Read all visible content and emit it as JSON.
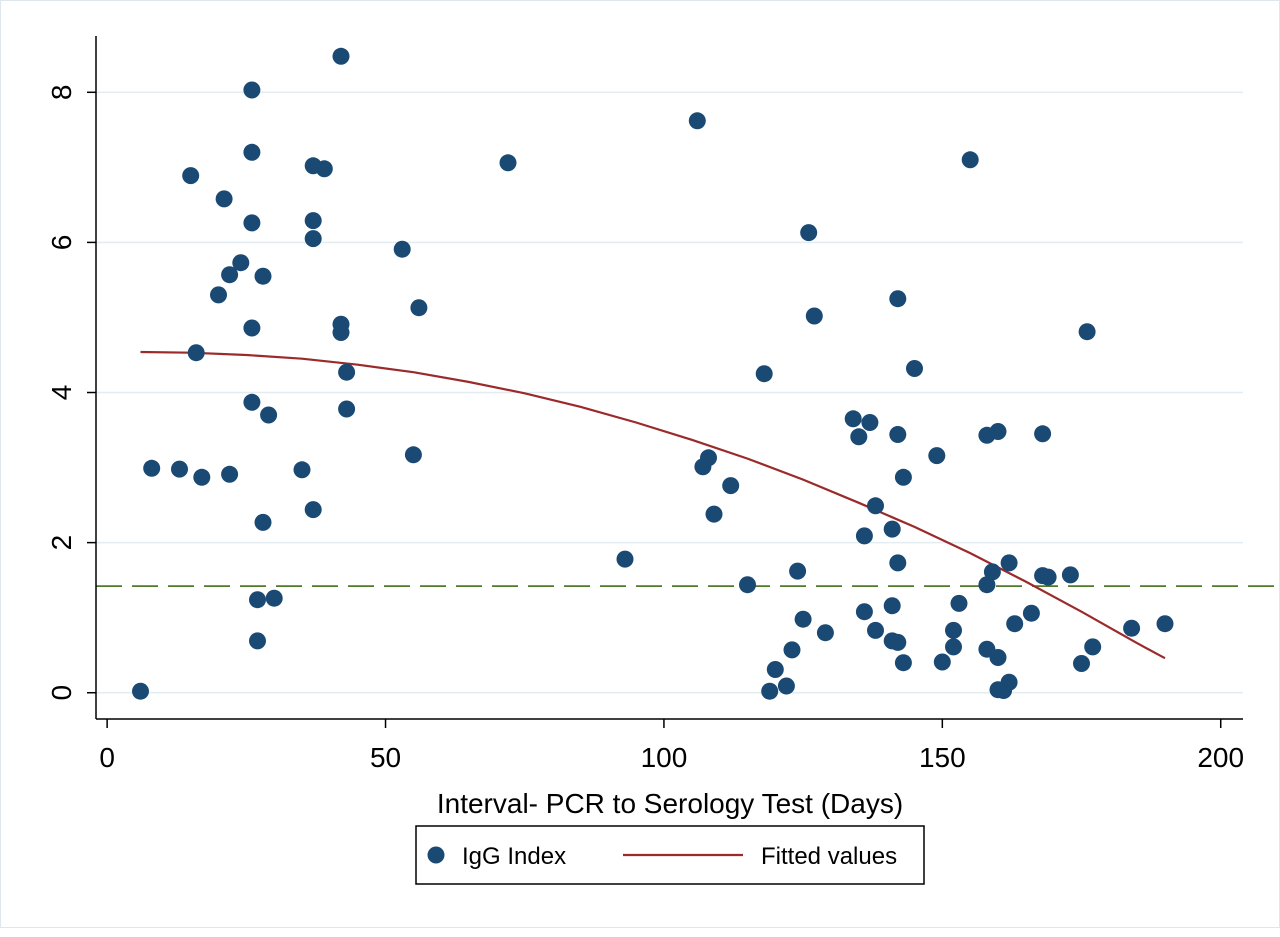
{
  "chart_data": {
    "type": "scatter",
    "title": "",
    "xlabel": "Interval- PCR to Serology Test (Days)",
    "ylabel": "",
    "xlim": [
      -2,
      204
    ],
    "ylim": [
      -0.35,
      8.75
    ],
    "xticks": [
      0,
      50,
      100,
      150,
      200
    ],
    "yticks": [
      0,
      2,
      4,
      6,
      8
    ],
    "grid": "horizontal",
    "legend_position": "bottom-center",
    "reference_line": {
      "y": 1.42,
      "style": "dashed",
      "color": "#4f7a2a"
    },
    "colors": {
      "points": "#1a4a74",
      "fit": "#9b2a2a",
      "grid": "#e3edf1"
    },
    "series": [
      {
        "name": "IgG Index",
        "kind": "scatter",
        "x": [
          6,
          8,
          13,
          15,
          16,
          17,
          20,
          21,
          22,
          22,
          24,
          26,
          26,
          26,
          26,
          26,
          27,
          27,
          28,
          28,
          29,
          30,
          35,
          37,
          37,
          37,
          37,
          39,
          42,
          42,
          42,
          43,
          43,
          53,
          55,
          56,
          72,
          93,
          106,
          107,
          108,
          109,
          112,
          115,
          118,
          119,
          120,
          122,
          123,
          124,
          125,
          126,
          127,
          129,
          134,
          135,
          136,
          136,
          137,
          138,
          138,
          141,
          141,
          141,
          142,
          142,
          142,
          142,
          143,
          143,
          145,
          149,
          150,
          152,
          152,
          153,
          155,
          158,
          158,
          158,
          159,
          160,
          160,
          160,
          161,
          162,
          162,
          163,
          166,
          168,
          168,
          169,
          173,
          175,
          176,
          177,
          184,
          190
        ],
        "y": [
          0.02,
          2.99,
          2.98,
          6.89,
          4.53,
          2.87,
          5.3,
          6.58,
          5.57,
          2.91,
          5.73,
          8.03,
          7.2,
          6.26,
          4.86,
          3.87,
          1.24,
          0.69,
          5.55,
          2.27,
          3.7,
          1.26,
          2.97,
          7.02,
          6.29,
          6.05,
          2.44,
          6.98,
          8.48,
          4.91,
          4.8,
          4.27,
          3.78,
          5.91,
          3.17,
          5.13,
          7.06,
          1.78,
          7.62,
          3.01,
          3.13,
          2.38,
          2.76,
          1.44,
          4.25,
          0.02,
          0.31,
          0.09,
          0.57,
          1.62,
          0.98,
          6.13,
          5.02,
          0.8,
          3.65,
          3.41,
          2.09,
          1.08,
          3.6,
          2.49,
          0.83,
          2.18,
          1.16,
          0.69,
          5.25,
          3.44,
          1.73,
          0.67,
          2.87,
          0.4,
          4.32,
          3.16,
          0.41,
          0.83,
          0.61,
          1.19,
          7.1,
          3.43,
          1.44,
          0.58,
          1.61,
          3.48,
          0.47,
          0.04,
          0.03,
          1.73,
          0.14,
          0.92,
          1.06,
          3.45,
          1.56,
          1.54,
          1.57,
          0.39,
          4.81,
          0.61,
          0.86,
          0.92
        ]
      },
      {
        "name": "Fitted values",
        "kind": "line",
        "x": [
          6,
          15,
          25,
          35,
          45,
          55,
          65,
          75,
          85,
          95,
          105,
          115,
          125,
          135,
          145,
          155,
          165,
          175,
          185,
          190
        ],
        "y": [
          4.54,
          4.53,
          4.5,
          4.45,
          4.37,
          4.27,
          4.14,
          3.99,
          3.81,
          3.6,
          3.37,
          3.12,
          2.84,
          2.53,
          2.21,
          1.86,
          1.48,
          1.08,
          0.66,
          0.46
        ]
      }
    ]
  }
}
